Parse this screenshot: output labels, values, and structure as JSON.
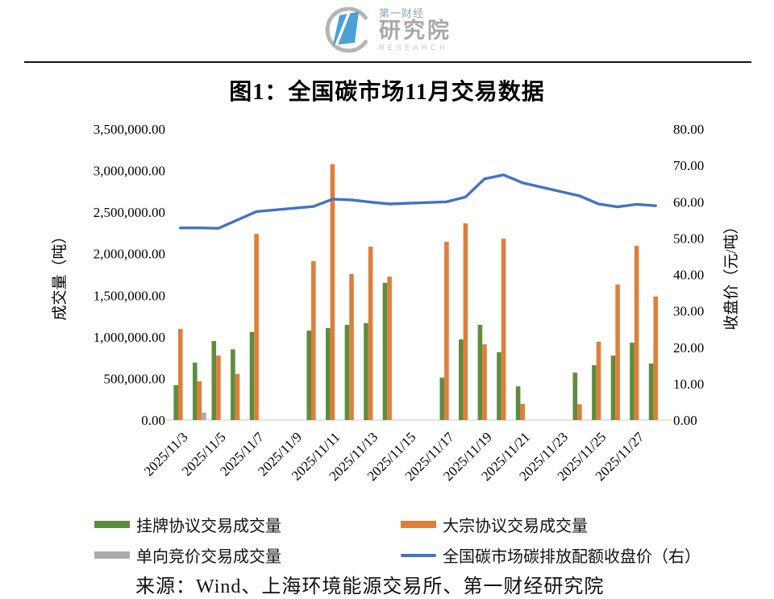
{
  "logo": {
    "brand_top": "第一财经",
    "brand_main": "研究院",
    "brand_sub": "RESEARCH"
  },
  "title": "图1：全国碳市场11月交易数据",
  "source": "来源：Wind、上海环境能源交易所、第一财经研究院",
  "chart_data": {
    "type": "bar+line combo",
    "title": "图1：全国碳市场11月交易数据",
    "x": [
      "2025/11/3",
      "2025/11/4",
      "2025/11/5",
      "2025/11/6",
      "2025/11/7",
      "2025/11/10",
      "2025/11/11",
      "2025/11/12",
      "2025/11/13",
      "2025/11/14",
      "2025/11/17",
      "2025/11/18",
      "2025/11/19",
      "2025/11/20",
      "2025/11/21",
      "2025/11/24",
      "2025/11/25",
      "2025/11/26",
      "2025/11/27",
      "2025/11/28"
    ],
    "x_tick_labels": [
      "2025/11/3",
      "2025/11/5",
      "2025/11/7",
      "2025/11/9",
      "2025/11/11",
      "2025/11/13",
      "2025/11/15",
      "2025/11/17",
      "2025/11/19",
      "2025/11/21",
      "2025/11/23",
      "2025/11/25",
      "2025/11/27"
    ],
    "x_axis_day_range": {
      "first_day": 3,
      "last_day": 28
    },
    "left_axis": {
      "label": "成交量（吨）",
      "min": 0,
      "max": 3500000,
      "step": 500000
    },
    "right_axis": {
      "label": "收盘价（元/吨）",
      "min": 0,
      "max": 80,
      "step": 10
    },
    "grid": false,
    "legend_position": "bottom",
    "series": [
      {
        "name": "挂牌协议交易成交量",
        "type": "bar",
        "axis": "left",
        "color": "#5E8C3E",
        "values": [
          420000,
          690000,
          950000,
          850000,
          1060000,
          1075000,
          1105000,
          1145000,
          1165000,
          1650000,
          510000,
          970000,
          1145000,
          815000,
          405000,
          570000,
          660000,
          775000,
          930000,
          680000
        ]
      },
      {
        "name": "大宗协议交易成交量",
        "type": "bar",
        "axis": "left",
        "color": "#E07E39",
        "values": [
          1095000,
          465000,
          775000,
          555000,
          2240000,
          1910000,
          3075000,
          1755000,
          2085000,
          1725000,
          2145000,
          2365000,
          910000,
          2180000,
          195000,
          190000,
          940000,
          1630000,
          2095000,
          1485000
        ]
      },
      {
        "name": "单向竞价交易成交量",
        "type": "bar",
        "axis": "left",
        "color": "#ABABAB",
        "values": [
          0,
          90000,
          0,
          0,
          0,
          0,
          0,
          0,
          0,
          0,
          0,
          0,
          0,
          0,
          0,
          0,
          0,
          0,
          0,
          0
        ]
      },
      {
        "name": "全国碳市场碳排放配额收盘价（右）",
        "type": "line",
        "axis": "right",
        "color": "#4472C4",
        "values": [
          52.8,
          52.8,
          52.7,
          55.0,
          57.3,
          58.7,
          60.7,
          60.5,
          59.9,
          59.4,
          60.0,
          61.3,
          66.3,
          67.4,
          65.2,
          61.6,
          59.4,
          58.6,
          59.3,
          58.9
        ]
      }
    ]
  }
}
